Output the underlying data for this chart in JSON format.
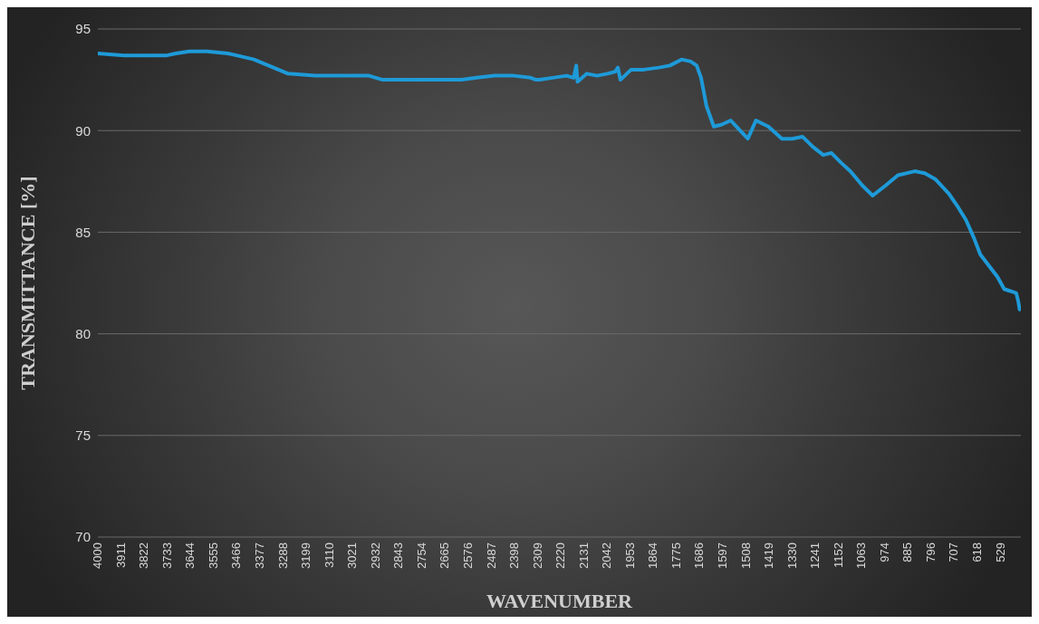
{
  "chart_data": {
    "type": "line",
    "xlabel": "WAVENUMBER",
    "ylabel": "TRANSMITTANCE [%]",
    "x": [
      4000,
      3900,
      3800,
      3734,
      3700,
      3648,
      3580,
      3500,
      3400,
      3268,
      3164,
      3050,
      2957,
      2905,
      2800,
      2700,
      2600,
      2543,
      2474,
      2400,
      2336,
      2315,
      2301,
      2250,
      2197,
      2170,
      2160,
      2155,
      2120,
      2080,
      2040,
      2010,
      2000,
      1990,
      1949,
      1900,
      1842,
      1800,
      1755,
      1720,
      1697,
      1680,
      1659,
      1631,
      1600,
      1566,
      1530,
      1500,
      1469,
      1421,
      1369,
      1330,
      1290,
      1250,
      1210,
      1179,
      1140,
      1106,
      1060,
      1020,
      970,
      923,
      858,
      820,
      778,
      727,
      690,
      661,
      630,
      606,
      570,
      540,
      514,
      490,
      468,
      460,
      455,
      450
    ],
    "series": [
      {
        "color": "#1e9ad8",
        "values": [
          93.8,
          93.7,
          93.7,
          93.7,
          93.8,
          93.9,
          93.9,
          93.8,
          93.5,
          92.8,
          92.7,
          92.7,
          92.7,
          92.5,
          92.5,
          92.5,
          92.5,
          92.6,
          92.7,
          92.7,
          92.6,
          92.5,
          92.5,
          92.6,
          92.7,
          92.6,
          93.2,
          92.4,
          92.8,
          92.7,
          92.8,
          92.9,
          93.1,
          92.5,
          93.0,
          93.0,
          93.1,
          93.2,
          93.5,
          93.4,
          93.2,
          92.6,
          91.2,
          90.2,
          90.3,
          90.5,
          90.0,
          89.6,
          90.5,
          90.2,
          89.6,
          89.6,
          89.7,
          89.2,
          88.8,
          88.9,
          88.4,
          88.0,
          87.3,
          86.8,
          87.3,
          87.8,
          88.0,
          87.9,
          87.6,
          86.9,
          86.2,
          85.6,
          84.7,
          83.9,
          83.3,
          82.8,
          82.2,
          82.1,
          82.0,
          81.6,
          81.2,
          81.3
        ]
      }
    ],
    "xlim": [
      4000,
      450
    ],
    "xticks": [
      4000,
      3911,
      3822,
      3733,
      3644,
      3555,
      3466,
      3377,
      3288,
      3199,
      3110,
      3021,
      2932,
      2843,
      2754,
      2665,
      2576,
      2487,
      2398,
      2309,
      2220,
      2131,
      2042,
      1953,
      1864,
      1775,
      1686,
      1597,
      1508,
      1419,
      1330,
      1241,
      1152,
      1063,
      974,
      885,
      796,
      707,
      618,
      529
    ],
    "ylim": [
      70,
      95
    ],
    "yticks": [
      70,
      75,
      80,
      85,
      90,
      95
    ],
    "grid": "y",
    "legend": false,
    "marker": "none",
    "line_style": "solid"
  }
}
